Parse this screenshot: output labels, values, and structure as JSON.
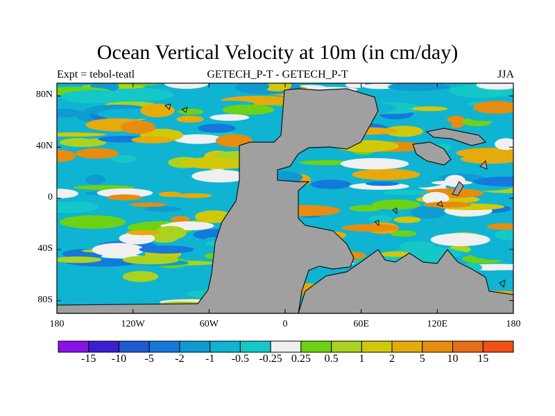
{
  "title": "Ocean Vertical Velocity at 10m (in cm/day)",
  "subtitle_left": "Expt = tebol-teatl",
  "subtitle_center": "GETECH_P-T - GETECH_P-T",
  "subtitle_right": "JJA",
  "map": {
    "projection": "cylindrical-equidistant",
    "lon_range": [
      -180,
      180
    ],
    "lat_range": [
      -90,
      90
    ],
    "land_color": "#a0a0a0",
    "y_ticks": [
      {
        "lat": 80,
        "label": "80N"
      },
      {
        "lat": 40,
        "label": "40N"
      },
      {
        "lat": 0,
        "label": "0"
      },
      {
        "lat": -40,
        "label": "40S"
      },
      {
        "lat": -80,
        "label": "80S"
      }
    ],
    "x_ticks": [
      {
        "lon": -180,
        "label": "180"
      },
      {
        "lon": -120,
        "label": "120W"
      },
      {
        "lon": -60,
        "label": "60W"
      },
      {
        "lon": 0,
        "label": "0"
      },
      {
        "lon": 60,
        "label": "60E"
      },
      {
        "lon": 120,
        "label": "120E"
      },
      {
        "lon": 180,
        "label": "180"
      }
    ]
  },
  "colorbar": {
    "colors": [
      "#8b10e8",
      "#3c1ed2",
      "#1e5ad2",
      "#1478dc",
      "#0f9bd2",
      "#0fb4d2",
      "#14c8c8",
      "#f0f0f0",
      "#6ed214",
      "#aad21e",
      "#d2c80a",
      "#e6aa0a",
      "#e68c0f",
      "#e66e19",
      "#f05014"
    ],
    "labels": [
      "-15",
      "-10",
      "-5",
      "-2",
      "-1",
      "-0.5",
      "-0.25",
      "0.25",
      "0.5",
      "1",
      "2",
      "5",
      "10",
      "15"
    ]
  }
}
